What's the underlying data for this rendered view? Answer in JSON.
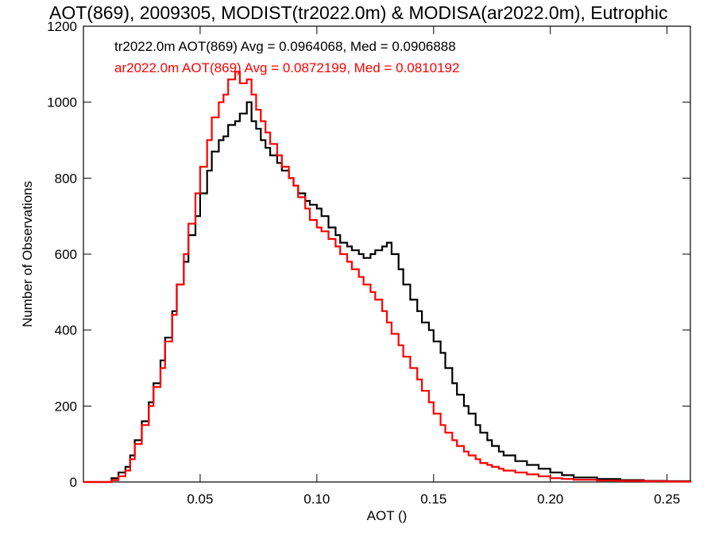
{
  "chart_data": {
    "type": "line",
    "title": "AOT(869), 2009305, MODIST(tr2022.0m) & MODISA(ar2022.0m), Eutrophic",
    "xlabel": "AOT ()",
    "ylabel": "Number of Observations",
    "xlim": [
      0.0,
      0.26
    ],
    "ylim": [
      0,
      1200
    ],
    "x_ticks": [
      0.05,
      0.1,
      0.15,
      0.2,
      0.25
    ],
    "x_tick_labels": [
      "0.05",
      "0.10",
      "0.15",
      "0.20",
      "0.25"
    ],
    "y_ticks": [
      0,
      200,
      400,
      600,
      800,
      1000,
      1200
    ],
    "y_tick_labels": [
      "0",
      "200",
      "400",
      "600",
      "800",
      "1000",
      "1200"
    ],
    "grid": false,
    "legend_placement": "top-left",
    "series": [
      {
        "name": "tr2022.0m AOT(869) Avg = 0.0964068, Med = 0.0906888",
        "color": "#000000",
        "x": [
          0.0,
          0.008,
          0.012,
          0.015,
          0.018,
          0.02,
          0.022,
          0.025,
          0.028,
          0.03,
          0.033,
          0.035,
          0.038,
          0.04,
          0.043,
          0.045,
          0.048,
          0.05,
          0.053,
          0.055,
          0.058,
          0.06,
          0.062,
          0.065,
          0.067,
          0.07,
          0.072,
          0.074,
          0.076,
          0.078,
          0.08,
          0.083,
          0.085,
          0.088,
          0.09,
          0.092,
          0.095,
          0.097,
          0.1,
          0.102,
          0.105,
          0.108,
          0.11,
          0.113,
          0.115,
          0.118,
          0.12,
          0.123,
          0.125,
          0.128,
          0.13,
          0.132,
          0.135,
          0.137,
          0.14,
          0.143,
          0.145,
          0.148,
          0.15,
          0.153,
          0.155,
          0.158,
          0.16,
          0.163,
          0.165,
          0.168,
          0.17,
          0.173,
          0.175,
          0.178,
          0.18,
          0.185,
          0.19,
          0.195,
          0.2,
          0.205,
          0.21,
          0.22,
          0.23,
          0.24,
          0.25,
          0.26
        ],
        "values": [
          0,
          0,
          10,
          25,
          40,
          70,
          110,
          160,
          210,
          260,
          320,
          380,
          450,
          520,
          580,
          650,
          700,
          760,
          820,
          870,
          900,
          910,
          940,
          950,
          970,
          1000,
          950,
          930,
          900,
          880,
          860,
          840,
          820,
          800,
          780,
          760,
          740,
          730,
          720,
          700,
          670,
          650,
          630,
          620,
          610,
          600,
          590,
          600,
          610,
          620,
          630,
          600,
          560,
          520,
          480,
          450,
          420,
          400,
          370,
          340,
          300,
          260,
          230,
          200,
          180,
          150,
          130,
          110,
          95,
          80,
          70,
          55,
          45,
          35,
          25,
          18,
          12,
          8,
          5,
          3,
          2,
          1
        ]
      },
      {
        "name": "ar2022.0m AOT(869) Avg = 0.0872199, Med = 0.0810192",
        "color": "#ff0000",
        "x": [
          0.0,
          0.008,
          0.012,
          0.015,
          0.018,
          0.02,
          0.022,
          0.025,
          0.028,
          0.03,
          0.033,
          0.035,
          0.038,
          0.04,
          0.043,
          0.045,
          0.048,
          0.05,
          0.053,
          0.055,
          0.058,
          0.06,
          0.062,
          0.065,
          0.067,
          0.07,
          0.072,
          0.074,
          0.076,
          0.078,
          0.08,
          0.083,
          0.085,
          0.088,
          0.09,
          0.092,
          0.095,
          0.097,
          0.1,
          0.102,
          0.105,
          0.108,
          0.11,
          0.113,
          0.115,
          0.118,
          0.12,
          0.123,
          0.125,
          0.128,
          0.13,
          0.132,
          0.135,
          0.137,
          0.14,
          0.143,
          0.145,
          0.148,
          0.15,
          0.153,
          0.155,
          0.158,
          0.16,
          0.163,
          0.165,
          0.168,
          0.17,
          0.173,
          0.175,
          0.178,
          0.18,
          0.185,
          0.19,
          0.195,
          0.2,
          0.205,
          0.21,
          0.22,
          0.23,
          0.24,
          0.25,
          0.26
        ],
        "values": [
          0,
          0,
          5,
          15,
          30,
          60,
          100,
          150,
          200,
          250,
          300,
          370,
          440,
          520,
          600,
          680,
          760,
          830,
          900,
          960,
          1000,
          1020,
          1060,
          1080,
          1050,
          1060,
          1020,
          980,
          950,
          920,
          890,
          860,
          830,
          800,
          780,
          750,
          720,
          690,
          670,
          660,
          640,
          620,
          600,
          580,
          560,
          540,
          520,
          500,
          480,
          450,
          420,
          390,
          360,
          330,
          300,
          270,
          240,
          210,
          180,
          150,
          130,
          110,
          95,
          80,
          70,
          60,
          50,
          45,
          40,
          35,
          30,
          25,
          20,
          15,
          10,
          8,
          6,
          4,
          3,
          2,
          1,
          0
        ]
      }
    ]
  }
}
